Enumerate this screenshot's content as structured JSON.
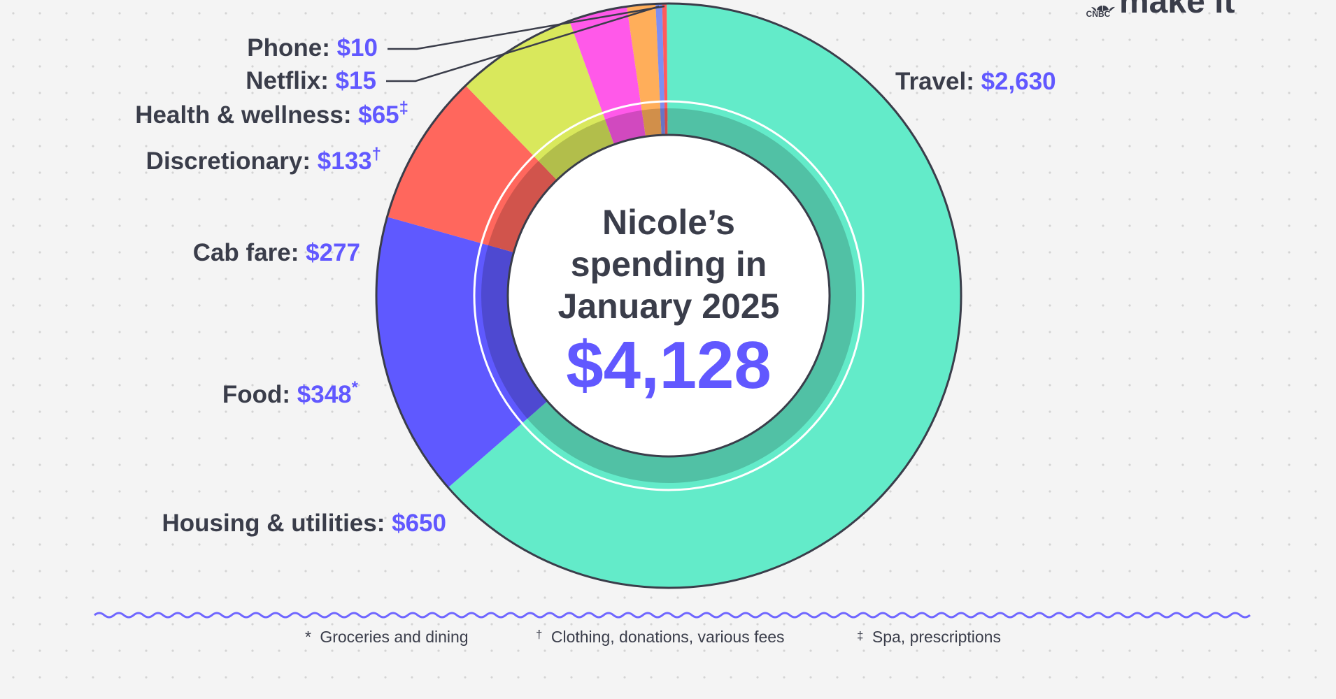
{
  "brand": {
    "network": "CNBC",
    "name": "make it"
  },
  "chart_data": {
    "type": "pie",
    "variant": "donut",
    "title_lines": [
      "Nicole’s",
      "spending in",
      "January 2025"
    ],
    "total_label": "$4,128",
    "total": 4128,
    "slices": [
      {
        "name": "Travel",
        "value": 2630,
        "value_label": "$2,630",
        "mark": "",
        "color": "#63ebc9"
      },
      {
        "name": "Housing & utilities",
        "value": 650,
        "value_label": "$650",
        "mark": "",
        "color": "#5f59ff"
      },
      {
        "name": "Food",
        "value": 348,
        "value_label": "$348",
        "mark": "*",
        "color": "#ff675d"
      },
      {
        "name": "Cab fare",
        "value": 277,
        "value_label": "$277",
        "mark": "",
        "color": "#d9e85c"
      },
      {
        "name": "Discretionary",
        "value": 133,
        "value_label": "$133",
        "mark": "†",
        "color": "#ff59e9"
      },
      {
        "name": "Health & wellness",
        "value": 65,
        "value_label": "$65",
        "mark": "‡",
        "color": "#ffae5a"
      },
      {
        "name": "Netflix",
        "value": 15,
        "value_label": "$15",
        "mark": "",
        "color": "#7d8ef2"
      },
      {
        "name": "Phone",
        "value": 10,
        "value_label": "$10",
        "mark": "",
        "color": "#ff5b5b"
      }
    ]
  },
  "footnotes": [
    {
      "mark": "*",
      "text": "Groceries and dining"
    },
    {
      "mark": "†",
      "text": "Clothing, donations, various fees"
    },
    {
      "mark": "‡",
      "text": "Spa, prescriptions"
    }
  ]
}
